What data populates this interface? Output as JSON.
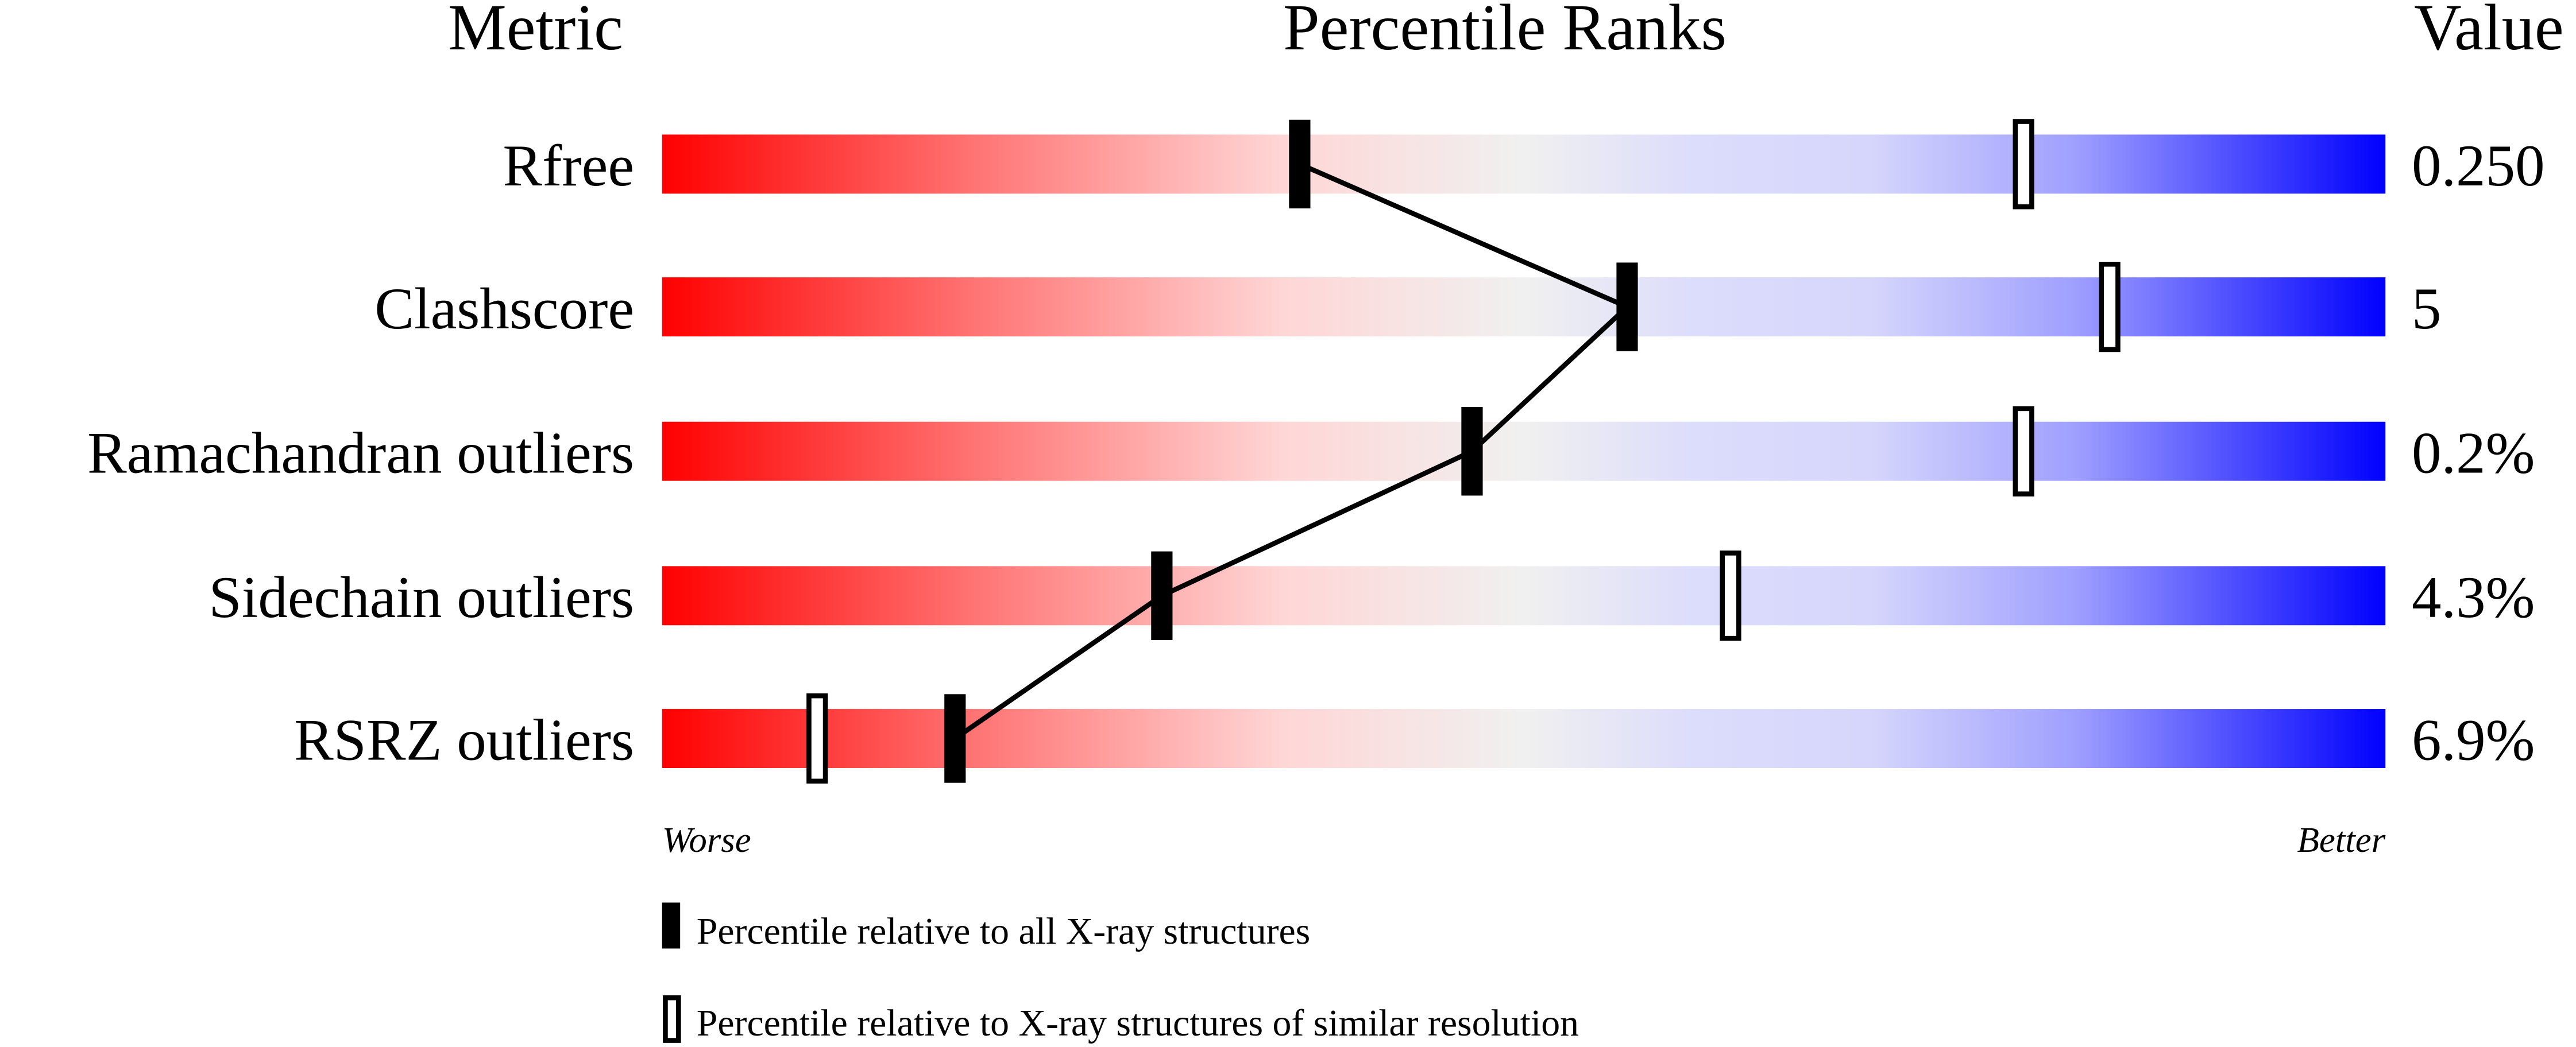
{
  "chart_data": {
    "type": "percentile-ranks",
    "headers": {
      "metric": "Metric",
      "title": "Percentile Ranks",
      "value": "Value"
    },
    "xlim": [
      0,
      100
    ],
    "metrics": [
      {
        "name": "Rfree",
        "value": "0.250",
        "percentile_all": 37,
        "percentile_similar": 79
      },
      {
        "name": "Clashscore",
        "value": "5",
        "percentile_all": 56,
        "percentile_similar": 84
      },
      {
        "name": "Ramachandran outliers",
        "value": "0.2%",
        "percentile_all": 47,
        "percentile_similar": 79
      },
      {
        "name": "Sidechain outliers",
        "value": "4.3%",
        "percentile_all": 29,
        "percentile_similar": 62
      },
      {
        "name": "RSRZ outliers",
        "value": "6.9%",
        "percentile_all": 17,
        "percentile_similar": 9
      }
    ],
    "axis_labels": {
      "left": "Worse",
      "right": "Better"
    },
    "legend": [
      {
        "marker": "filled",
        "label": "Percentile relative to all X-ray structures"
      },
      {
        "marker": "open",
        "label": "Percentile relative to X-ray structures of similar resolution"
      }
    ],
    "colors": {
      "worse": "#ff0000",
      "middle": "#f0f0f0",
      "better": "#0000ff",
      "marker": "#000000"
    }
  }
}
